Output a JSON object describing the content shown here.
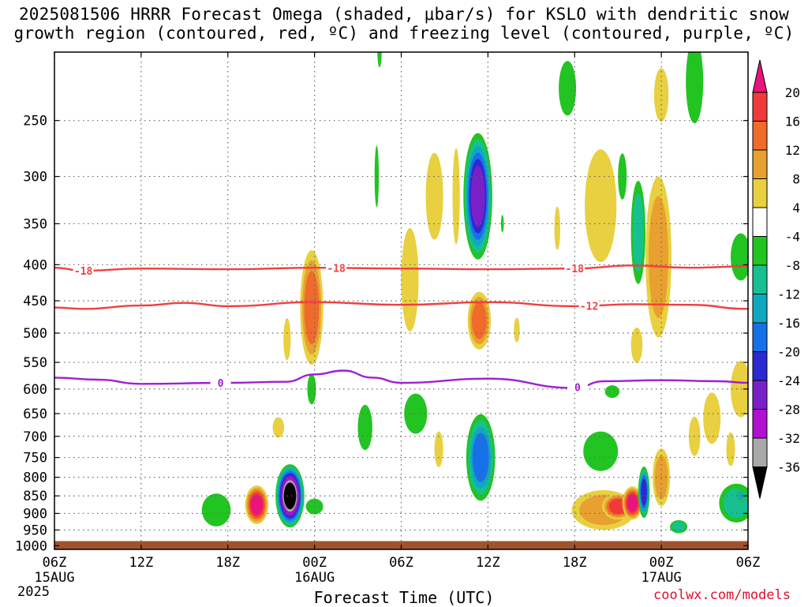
{
  "title": {
    "line1": "2025081506 HRRR Forecast Omega (shaded, μbar/s) for KSLO with dendritic snow",
    "line2": "growth region (contoured, red, ºC) and freezing level (contoured, purple, ºC)"
  },
  "xlabel": "Forecast Time (UTC)",
  "credit": "coolwx.com/models",
  "year_label": "2025",
  "chart_data": {
    "type": "heatmap",
    "title": "2025081506 HRRR Forecast Omega (shaded, μbar/s) for KSLO with dendritic snow growth region (contoured, red, ºC) and freezing level (contoured, purple, ºC)",
    "xlabel": "Forecast Time (UTC)",
    "ylabel": "",
    "y_scale": "log pressure (inverted)",
    "x_ticks": [
      {
        "hour": 0,
        "label": "06Z",
        "sub": "15AUG"
      },
      {
        "hour": 6,
        "label": "12Z",
        "sub": ""
      },
      {
        "hour": 12,
        "label": "18Z",
        "sub": ""
      },
      {
        "hour": 18,
        "label": "00Z",
        "sub": "16AUG"
      },
      {
        "hour": 24,
        "label": "06Z",
        "sub": ""
      },
      {
        "hour": 30,
        "label": "12Z",
        "sub": ""
      },
      {
        "hour": 36,
        "label": "18Z",
        "sub": ""
      },
      {
        "hour": 42,
        "label": "00Z",
        "sub": "17AUG"
      },
      {
        "hour": 48,
        "label": "06Z",
        "sub": ""
      }
    ],
    "y_ticks": [
      250,
      300,
      350,
      400,
      450,
      500,
      550,
      600,
      650,
      700,
      750,
      800,
      850,
      900,
      950,
      1000
    ],
    "xlim": [
      0,
      48
    ],
    "ylim": [
      1012,
      200
    ],
    "grid": true,
    "colorbar": {
      "labels": [
        "20",
        "16",
        "12",
        "8",
        "4",
        "-4",
        "-8",
        "-12",
        "-16",
        "-20",
        "-24",
        "-28",
        "-32",
        "-36"
      ],
      "colors": [
        "#e8157a",
        "#f03a3a",
        "#f06a2a",
        "#e8a030",
        "#e8d040",
        "#ffffff",
        "#22c422",
        "#16c090",
        "#10a8c0",
        "#1870e8",
        "#2a2ad0",
        "#7a20c8",
        "#b010d0",
        "#a8a8a8",
        "#000000"
      ]
    },
    "contours": [
      {
        "label": "-18",
        "color": "#f04040",
        "points": [
          [
            0,
            404
          ],
          [
            2,
            408
          ],
          [
            6,
            405
          ],
          [
            12,
            406
          ],
          [
            18,
            404
          ],
          [
            24,
            405
          ],
          [
            30,
            406
          ],
          [
            36,
            405
          ],
          [
            40,
            401
          ],
          [
            44,
            404
          ],
          [
            48,
            402
          ]
        ]
      },
      {
        "label": "-12",
        "color": "#f04040",
        "points": [
          [
            0,
            460
          ],
          [
            2,
            462
          ],
          [
            6,
            457
          ],
          [
            9,
            453
          ],
          [
            12,
            458
          ],
          [
            18,
            452
          ],
          [
            24,
            456
          ],
          [
            30,
            452
          ],
          [
            36,
            458
          ],
          [
            40,
            455
          ],
          [
            44,
            456
          ],
          [
            48,
            462
          ]
        ]
      },
      {
        "label": "0",
        "color": "#a020d0",
        "points": [
          [
            0,
            578
          ],
          [
            3,
            582
          ],
          [
            6,
            590
          ],
          [
            12,
            588
          ],
          [
            16,
            586
          ],
          [
            18,
            572
          ],
          [
            20,
            565
          ],
          [
            22,
            578
          ],
          [
            24,
            588
          ],
          [
            30,
            580
          ],
          [
            36,
            598
          ],
          [
            38,
            585
          ],
          [
            42,
            583
          ],
          [
            46,
            585
          ],
          [
            48,
            588
          ]
        ]
      }
    ],
    "omega_cells": [
      {
        "t": 14.0,
        "p": 875,
        "dt": 0.8,
        "dp": 110,
        "v": 22
      },
      {
        "t": 16.3,
        "p": 850,
        "dt": 1.0,
        "dp": 175,
        "v": -40
      },
      {
        "t": 11.2,
        "p": 890,
        "dt": 1.0,
        "dp": 95,
        "v": -6
      },
      {
        "t": 18.0,
        "p": 880,
        "dt": 0.6,
        "dp": 45,
        "v": -6
      },
      {
        "t": 17.8,
        "p": 600,
        "dt": 0.3,
        "dp": 60,
        "v": -6
      },
      {
        "t": 17.8,
        "p": 460,
        "dt": 0.8,
        "dp": 170,
        "v": 12
      },
      {
        "t": 16.1,
        "p": 510,
        "dt": 0.25,
        "dp": 70,
        "v": 5
      },
      {
        "t": 15.5,
        "p": 680,
        "dt": 0.4,
        "dp": 45,
        "v": 5
      },
      {
        "t": 21.5,
        "p": 680,
        "dt": 0.5,
        "dp": 100,
        "v": -6
      },
      {
        "t": 22.3,
        "p": 300,
        "dt": 0.15,
        "dp": 60,
        "v": -6
      },
      {
        "t": 22.5,
        "p": 200,
        "dt": 0.15,
        "dp": 20,
        "v": -6
      },
      {
        "t": 25.0,
        "p": 650,
        "dt": 0.8,
        "dp": 85,
        "v": -6
      },
      {
        "t": 24.6,
        "p": 420,
        "dt": 0.6,
        "dp": 140,
        "v": 5
      },
      {
        "t": 26.3,
        "p": 320,
        "dt": 0.6,
        "dp": 90,
        "v": 5
      },
      {
        "t": 26.6,
        "p": 730,
        "dt": 0.3,
        "dp": 85,
        "v": 5
      },
      {
        "t": 29.3,
        "p": 320,
        "dt": 1.0,
        "dp": 130,
        "v": -26
      },
      {
        "t": 29.4,
        "p": 480,
        "dt": 0.8,
        "dp": 90,
        "v": 12
      },
      {
        "t": 27.8,
        "p": 320,
        "dt": 0.25,
        "dp": 100,
        "v": 5
      },
      {
        "t": 29.5,
        "p": 750,
        "dt": 1.0,
        "dp": 210,
        "v": -16
      },
      {
        "t": 32.0,
        "p": 495,
        "dt": 0.2,
        "dp": 40,
        "v": 5
      },
      {
        "t": 31.0,
        "p": 350,
        "dt": 0.1,
        "dp": 20,
        "v": -6
      },
      {
        "t": 34.8,
        "p": 355,
        "dt": 0.2,
        "dp": 50,
        "v": 5
      },
      {
        "t": 35.5,
        "p": 225,
        "dt": 0.6,
        "dp": 40,
        "v": -6
      },
      {
        "t": 37.8,
        "p": 330,
        "dt": 1.1,
        "dp": 120,
        "v": 7
      },
      {
        "t": 39.3,
        "p": 300,
        "dt": 0.3,
        "dp": 45,
        "v": -6
      },
      {
        "t": 40.4,
        "p": 360,
        "dt": 0.5,
        "dp": 120,
        "v": -10
      },
      {
        "t": 41.8,
        "p": 390,
        "dt": 0.9,
        "dp": 200,
        "v": 10
      },
      {
        "t": 40.3,
        "p": 520,
        "dt": 0.4,
        "dp": 60,
        "v": 5
      },
      {
        "t": 42.0,
        "p": 230,
        "dt": 0.5,
        "dp": 40,
        "v": 5
      },
      {
        "t": 44.3,
        "p": 220,
        "dt": 0.6,
        "dp": 60,
        "v": -6
      },
      {
        "t": 47.5,
        "p": 390,
        "dt": 0.7,
        "dp": 60,
        "v": -6
      },
      {
        "t": 47.5,
        "p": 600,
        "dt": 0.7,
        "dp": 110,
        "v": 5
      },
      {
        "t": 45.5,
        "p": 660,
        "dt": 0.6,
        "dp": 110,
        "v": 5
      },
      {
        "t": 46.8,
        "p": 730,
        "dt": 0.3,
        "dp": 80,
        "v": 5
      },
      {
        "t": 37.8,
        "p": 735,
        "dt": 1.2,
        "dp": 95,
        "v": -6
      },
      {
        "t": 38.0,
        "p": 890,
        "dt": 2.2,
        "dp": 115,
        "v": 10
      },
      {
        "t": 39.0,
        "p": 880,
        "dt": 1.1,
        "dp": 75,
        "v": 17
      },
      {
        "t": 40.0,
        "p": 870,
        "dt": 0.7,
        "dp": 95,
        "v": 22
      },
      {
        "t": 40.8,
        "p": 840,
        "dt": 0.4,
        "dp": 140,
        "v": -20
      },
      {
        "t": 42.0,
        "p": 800,
        "dt": 0.6,
        "dp": 150,
        "v": 8
      },
      {
        "t": 43.2,
        "p": 940,
        "dt": 0.6,
        "dp": 40,
        "v": -10
      },
      {
        "t": 44.3,
        "p": 700,
        "dt": 0.4,
        "dp": 90,
        "v": 5
      },
      {
        "t": 47.2,
        "p": 870,
        "dt": 1.2,
        "dp": 110,
        "v": -8
      },
      {
        "t": 47.5,
        "p": 850,
        "dt": 0.3,
        "dp": 40,
        "v": -14
      },
      {
        "t": 38.6,
        "p": 605,
        "dt": 0.5,
        "dp": 25,
        "v": -6
      }
    ],
    "terrain": {
      "color": "#a0522d",
      "p_top": 985,
      "p_bottom": 1012
    }
  }
}
